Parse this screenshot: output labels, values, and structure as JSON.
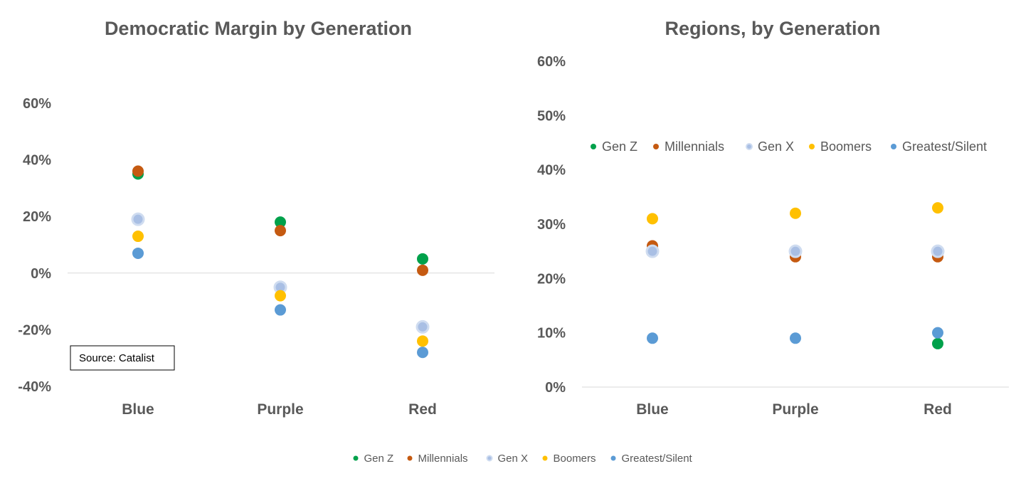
{
  "chart_data": [
    {
      "type": "scatter",
      "title": "Democratic Margin by Generation",
      "categories": [
        "Blue",
        "Purple",
        "Red"
      ],
      "ylim": [
        -40,
        60
      ],
      "yticks": [
        "60%",
        "40%",
        "20%",
        "0%",
        "-20%",
        "-40%"
      ],
      "ytick_values": [
        60,
        40,
        20,
        0,
        -20,
        -40
      ],
      "grid": false,
      "zero_line": true,
      "legend_position": "bottom",
      "annotation": "Source: Catalist",
      "series": [
        {
          "name": "Gen Z",
          "color": "#00A14B",
          "values": [
            35,
            18,
            5
          ]
        },
        {
          "name": "Millennials",
          "color": "#C55A11",
          "values": [
            36,
            15,
            1
          ]
        },
        {
          "name": "Gen X",
          "color": "#B4C7E7",
          "values": [
            19,
            -5,
            -19
          ]
        },
        {
          "name": "Boomers",
          "color": "#FFC000",
          "values": [
            13,
            -8,
            -24
          ]
        },
        {
          "name": "Greatest/Silent",
          "color": "#5B9BD5",
          "values": [
            7,
            -13,
            -28
          ]
        }
      ]
    },
    {
      "type": "scatter",
      "title": "Regions, by Generation",
      "categories": [
        "Blue",
        "Purple",
        "Red"
      ],
      "ylim": [
        0,
        60
      ],
      "yticks": [
        "60%",
        "50%",
        "40%",
        "30%",
        "20%",
        "10%",
        "0%"
      ],
      "ytick_values": [
        60,
        50,
        40,
        30,
        20,
        10,
        0
      ],
      "grid": false,
      "legend_position": "top",
      "series": [
        {
          "name": "Gen Z",
          "color": "#00A14B",
          "values": [
            null,
            null,
            8
          ]
        },
        {
          "name": "Millennials",
          "color": "#C55A11",
          "values": [
            26,
            24,
            24
          ]
        },
        {
          "name": "Gen X",
          "color": "#B4C7E7",
          "values": [
            25,
            25,
            25
          ]
        },
        {
          "name": "Boomers",
          "color": "#FFC000",
          "values": [
            31,
            32,
            33
          ]
        },
        {
          "name": "Greatest/Silent",
          "color": "#5B9BD5",
          "values": [
            9,
            9,
            10
          ]
        }
      ]
    }
  ],
  "legend_bottom": [
    "Gen Z",
    "Millennials",
    "Gen X",
    "Boomers",
    "Greatest/Silent"
  ]
}
